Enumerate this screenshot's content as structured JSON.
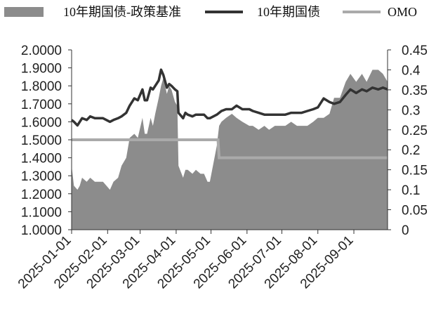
{
  "chart_data": {
    "type": "area+line",
    "title": "",
    "xlabel": "",
    "ylabel_left": "",
    "ylabel_right": "",
    "x_tick_labels": [
      "2025-01-01",
      "2025-02-01",
      "2025-03-01",
      "2025-04-01",
      "2025-05-01",
      "2025-06-01",
      "2025-07-01",
      "2025-08-01",
      "2025-09-01"
    ],
    "x_range": [
      "2025-01-01",
      "2025-09-30"
    ],
    "left_axis": {
      "min": 1.0,
      "max": 2.0,
      "ticks": [
        "1.0000",
        "1.1000",
        "1.2000",
        "1.3000",
        "1.4000",
        "1.5000",
        "1.6000",
        "1.7000",
        "1.8000",
        "1.9000",
        "2.0000"
      ]
    },
    "right_axis": {
      "min": 0,
      "max": 0.45,
      "ticks": [
        "0",
        "0.05",
        "0.1",
        "0.15",
        "0.2",
        "0.25",
        "0.3",
        "0.35",
        "0.4",
        "0.45"
      ]
    },
    "legend": {
      "position": "top",
      "entries": [
        "10年期国债-政策基准",
        "10年期国债",
        "OMO"
      ]
    },
    "grid": false,
    "series": [
      {
        "name": "10年期国债-政策基准",
        "type": "area",
        "axis": "right",
        "color": "#8c8c8c",
        "x": [
          "2025-01-01",
          "2025-01-03",
          "2025-01-06",
          "2025-01-08",
          "2025-01-10",
          "2025-01-14",
          "2025-01-17",
          "2025-01-21",
          "2025-01-24",
          "2025-01-28",
          "2025-02-03",
          "2025-02-06",
          "2025-02-10",
          "2025-02-13",
          "2025-02-17",
          "2025-02-20",
          "2025-02-24",
          "2025-02-27",
          "2025-03-03",
          "2025-03-05",
          "2025-03-07",
          "2025-03-10",
          "2025-03-12",
          "2025-03-14",
          "2025-03-17",
          "2025-03-19",
          "2025-03-21",
          "2025-03-24",
          "2025-03-26",
          "2025-03-28",
          "2025-03-31",
          "2025-04-02",
          "2025-04-03",
          "2025-04-07",
          "2025-04-09",
          "2025-04-11",
          "2025-04-15",
          "2025-04-18",
          "2025-04-22",
          "2025-04-25",
          "2025-04-28",
          "2025-04-30",
          "2025-05-06",
          "2025-05-08",
          "2025-05-10",
          "2025-05-14",
          "2025-05-19",
          "2025-05-23",
          "2025-05-28",
          "2025-06-03",
          "2025-06-06",
          "2025-06-11",
          "2025-06-16",
          "2025-06-20",
          "2025-06-25",
          "2025-06-30",
          "2025-07-04",
          "2025-07-09",
          "2025-07-14",
          "2025-07-18",
          "2025-07-23",
          "2025-07-28",
          "2025-08-01",
          "2025-08-06",
          "2025-08-11",
          "2025-08-15",
          "2025-08-20",
          "2025-08-25",
          "2025-08-29",
          "2025-09-03",
          "2025-09-08",
          "2025-09-12",
          "2025-09-17",
          "2025-09-22",
          "2025-09-26",
          "2025-09-30"
        ],
        "values": [
          0.16,
          0.11,
          0.1,
          0.11,
          0.13,
          0.12,
          0.13,
          0.12,
          0.12,
          0.12,
          0.1,
          0.12,
          0.13,
          0.16,
          0.18,
          0.23,
          0.24,
          0.23,
          0.28,
          0.24,
          0.24,
          0.28,
          0.26,
          0.29,
          0.33,
          0.36,
          0.38,
          0.34,
          0.36,
          0.35,
          0.32,
          0.31,
          0.16,
          0.13,
          0.15,
          0.15,
          0.14,
          0.15,
          0.14,
          0.14,
          0.12,
          0.12,
          0.21,
          0.26,
          0.27,
          0.28,
          0.29,
          0.28,
          0.27,
          0.26,
          0.26,
          0.25,
          0.26,
          0.25,
          0.26,
          0.26,
          0.26,
          0.27,
          0.26,
          0.26,
          0.26,
          0.27,
          0.28,
          0.28,
          0.29,
          0.33,
          0.33,
          0.37,
          0.39,
          0.37,
          0.39,
          0.37,
          0.4,
          0.4,
          0.39,
          0.37
        ]
      },
      {
        "name": "10年期国债",
        "type": "line",
        "axis": "left",
        "color": "#333333",
        "x": [
          "2025-01-01",
          "2025-01-03",
          "2025-01-06",
          "2025-01-08",
          "2025-01-10",
          "2025-01-14",
          "2025-01-17",
          "2025-01-21",
          "2025-01-24",
          "2025-01-28",
          "2025-02-03",
          "2025-02-06",
          "2025-02-10",
          "2025-02-13",
          "2025-02-17",
          "2025-02-20",
          "2025-02-24",
          "2025-02-27",
          "2025-03-03",
          "2025-03-05",
          "2025-03-07",
          "2025-03-10",
          "2025-03-12",
          "2025-03-14",
          "2025-03-17",
          "2025-03-19",
          "2025-03-21",
          "2025-03-24",
          "2025-03-26",
          "2025-03-28",
          "2025-03-31",
          "2025-04-02",
          "2025-04-03",
          "2025-04-07",
          "2025-04-09",
          "2025-04-11",
          "2025-04-15",
          "2025-04-18",
          "2025-04-22",
          "2025-04-25",
          "2025-04-28",
          "2025-04-30",
          "2025-05-06",
          "2025-05-08",
          "2025-05-10",
          "2025-05-14",
          "2025-05-19",
          "2025-05-23",
          "2025-05-28",
          "2025-06-03",
          "2025-06-06",
          "2025-06-11",
          "2025-06-16",
          "2025-06-20",
          "2025-06-25",
          "2025-06-30",
          "2025-07-04",
          "2025-07-09",
          "2025-07-14",
          "2025-07-18",
          "2025-07-23",
          "2025-07-28",
          "2025-08-01",
          "2025-08-06",
          "2025-08-11",
          "2025-08-15",
          "2025-08-20",
          "2025-08-25",
          "2025-08-29",
          "2025-09-03",
          "2025-09-08",
          "2025-09-12",
          "2025-09-17",
          "2025-09-22",
          "2025-09-26",
          "2025-09-30"
        ],
        "values": [
          1.61,
          1.6,
          1.58,
          1.6,
          1.62,
          1.61,
          1.63,
          1.62,
          1.62,
          1.62,
          1.6,
          1.61,
          1.62,
          1.63,
          1.65,
          1.69,
          1.73,
          1.72,
          1.78,
          1.72,
          1.72,
          1.79,
          1.78,
          1.8,
          1.83,
          1.89,
          1.86,
          1.79,
          1.81,
          1.8,
          1.78,
          1.77,
          1.65,
          1.62,
          1.65,
          1.64,
          1.63,
          1.64,
          1.64,
          1.64,
          1.62,
          1.62,
          1.64,
          1.65,
          1.66,
          1.67,
          1.67,
          1.69,
          1.67,
          1.67,
          1.66,
          1.65,
          1.64,
          1.64,
          1.64,
          1.64,
          1.64,
          1.65,
          1.65,
          1.65,
          1.66,
          1.67,
          1.68,
          1.73,
          1.71,
          1.7,
          1.71,
          1.75,
          1.78,
          1.76,
          1.78,
          1.77,
          1.79,
          1.78,
          1.79,
          1.78
        ]
      },
      {
        "name": "OMO",
        "type": "line",
        "axis": "left",
        "color": "#aaaaaa",
        "x": [
          "2025-01-01",
          "2025-05-07",
          "2025-05-08",
          "2025-09-30"
        ],
        "values": [
          1.5,
          1.5,
          1.4,
          1.4
        ]
      }
    ]
  }
}
